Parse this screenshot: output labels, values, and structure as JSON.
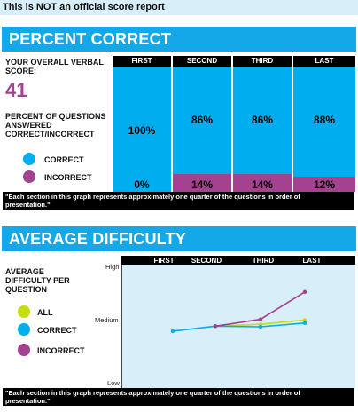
{
  "notice": "This is NOT an official score report",
  "sections": {
    "percent": {
      "title": "PERCENT CORRECT"
    },
    "difficulty": {
      "title": "AVERAGE DIFFICULTY"
    }
  },
  "score": {
    "label_line1": "YOUR OVERALL VERBAL",
    "label_line2": "SCORE:",
    "value": "41"
  },
  "percent_label": {
    "line1": "PERCENT OF QUESTIONS",
    "line2": "ANSWERED",
    "line3": "CORRECT/INCORRECT"
  },
  "difficulty_label": {
    "line1": "AVERAGE",
    "line2": "DIFFICULTY PER",
    "line3": "QUESTION"
  },
  "legend_percent": [
    {
      "label": "CORRECT",
      "color": "#00aeef"
    },
    {
      "label": "INCORRECT",
      "color": "#a4428f"
    }
  ],
  "legend_difficulty": [
    {
      "label": "ALL",
      "color": "#c8dc14"
    },
    {
      "label": "CORRECT",
      "color": "#00aeef"
    },
    {
      "label": "INCORRECT",
      "color": "#a4428f"
    }
  ],
  "footnote": {
    "line1": "\"Each section in this graph represents approximately one quarter of the questions in order of",
    "line2": "presentation.\""
  },
  "chart_data": [
    {
      "type": "bar",
      "stacked": true,
      "categories": [
        "FIRST",
        "SECOND",
        "THIRD",
        "LAST"
      ],
      "series": [
        {
          "name": "CORRECT",
          "values": [
            100,
            86,
            86,
            88
          ],
          "color": "#00aeef"
        },
        {
          "name": "INCORRECT",
          "values": [
            0,
            14,
            14,
            12
          ],
          "color": "#a4428f"
        }
      ],
      "data_labels_correct": [
        "100%",
        "86%",
        "86%",
        "88%"
      ],
      "data_labels_incorrect": [
        "0%",
        "14%",
        "14%",
        "12%"
      ],
      "ylim": [
        0,
        100
      ]
    },
    {
      "type": "line",
      "categories": [
        "FIRST",
        "SECOND",
        "THIRD",
        "LAST"
      ],
      "y_ticks": [
        "High",
        "Medium",
        "Low"
      ],
      "ylim": [
        0,
        1
      ],
      "grid": false,
      "background": "#d8eef8",
      "series": [
        {
          "name": "ALL",
          "color": "#c8dc14",
          "values": [
            null,
            0.505,
            0.52,
            0.555
          ]
        },
        {
          "name": "CORRECT",
          "color": "#00aeef",
          "values": [
            0.465,
            0.505,
            0.5,
            0.53
          ]
        },
        {
          "name": "INCORRECT",
          "color": "#a4428f",
          "values": [
            null,
            0.505,
            0.56,
            0.78
          ]
        }
      ]
    }
  ]
}
